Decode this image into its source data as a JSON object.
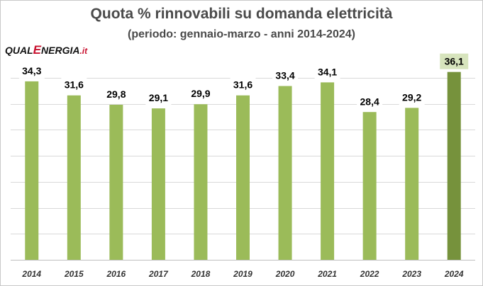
{
  "chart_data": {
    "type": "bar",
    "title": "Quota % rinnovabili su domanda elettricità",
    "subtitle": "(periodo: gennaio-marzo - anni 2014-2024)",
    "categories": [
      "2014",
      "2015",
      "2016",
      "2017",
      "2018",
      "2019",
      "2020",
      "2021",
      "2022",
      "2023",
      "2024"
    ],
    "values": [
      34.3,
      31.6,
      29.8,
      29.1,
      29.9,
      31.6,
      33.4,
      34.1,
      28.4,
      29.2,
      36.1
    ],
    "value_labels": [
      "34,3",
      "31,6",
      "29,8",
      "29,1",
      "29,9",
      "31,6",
      "33,4",
      "34,1",
      "28,4",
      "29,2",
      "36,1"
    ],
    "ylim": [
      0,
      40
    ],
    "y_gridlines": [
      5,
      10,
      15,
      20,
      25,
      30,
      35
    ],
    "grid": true,
    "xlabel": "",
    "ylabel": "",
    "highlight_index": 10,
    "colors": {
      "bar": "#9bbb59",
      "bar_highlight": "#76923c",
      "highlight_label_bg": "#d7e4bd",
      "grid": "#d9d9d9",
      "label": "#000000",
      "axis_text": "#333333"
    }
  },
  "logo": {
    "part1": "QUAL",
    "part2": "E",
    "part3": "NERGIA",
    "part4": ".it"
  }
}
